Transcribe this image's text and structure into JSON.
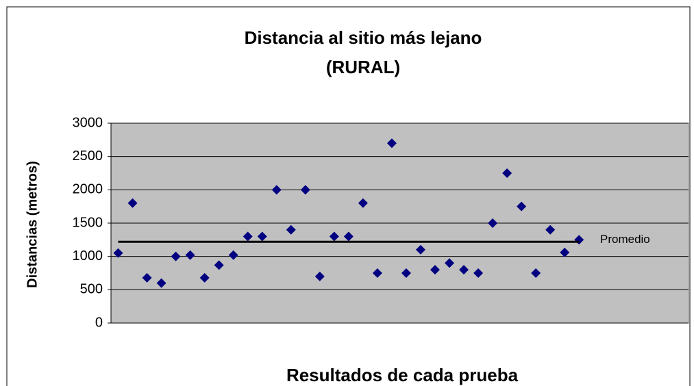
{
  "chart_data": {
    "type": "scatter",
    "title": [
      "Distancia al sitio más lejano",
      "(RURAL)"
    ],
    "x_label": "Resultados de cada prueba",
    "y_label": "Distancias (metros)",
    "x": [
      1,
      2,
      3,
      4,
      5,
      6,
      7,
      8,
      9,
      10,
      11,
      12,
      13,
      14,
      15,
      16,
      17,
      18,
      19,
      20,
      21,
      22,
      23,
      24,
      25,
      26,
      27,
      28,
      29,
      30,
      31,
      32,
      33
    ],
    "series": [
      {
        "color": "#000080",
        "values": [
          1050,
          1800,
          680,
          600,
          1000,
          1020,
          680,
          870,
          1020,
          1300,
          1300,
          2000,
          1400,
          2000,
          700,
          1300,
          1300,
          1800,
          750,
          2700,
          750,
          1100,
          800,
          900,
          800,
          750,
          1500,
          2250,
          1750,
          750,
          1400,
          1060,
          1250
        ]
      }
    ],
    "average": {
      "name": "Promedio",
      "value": 1220,
      "color": "#000000"
    },
    "xlim": [
      0.5,
      40.6
    ],
    "ylim": [
      0,
      3000
    ],
    "yticks": [
      0,
      500,
      1000,
      1500,
      2000,
      2500,
      3000
    ],
    "grid": true,
    "plot_background": "#c0c0c0"
  }
}
